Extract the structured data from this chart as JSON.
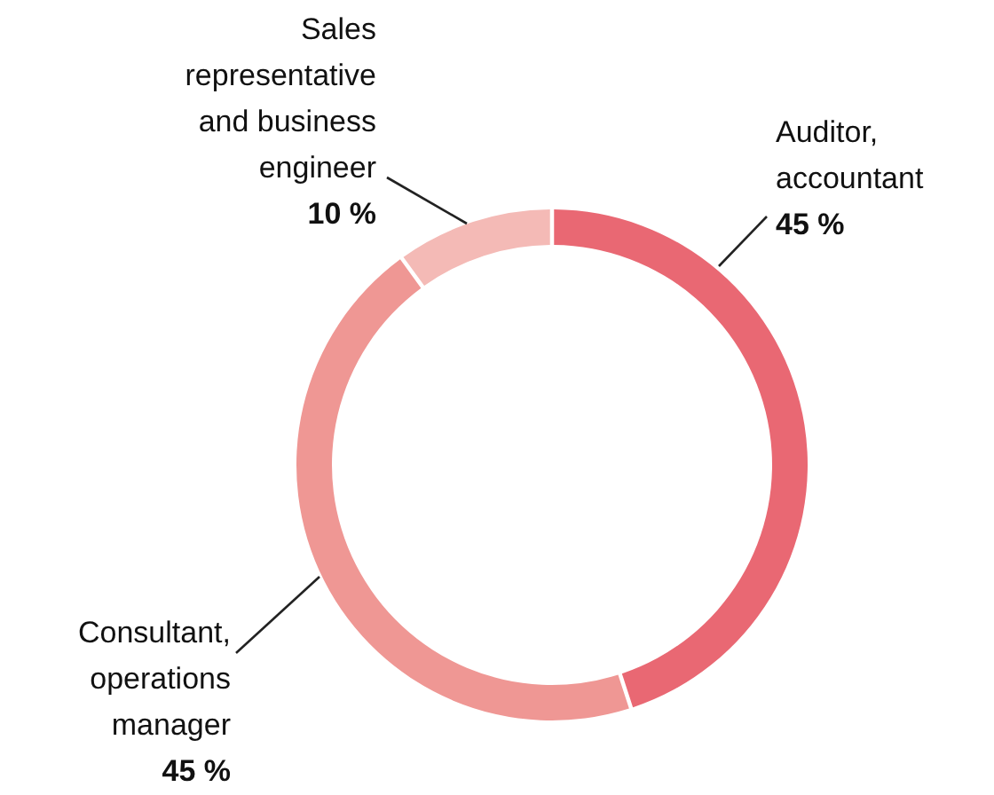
{
  "chart_data": {
    "type": "donut",
    "categories": [
      "Auditor, accountant",
      "Consultant, operations manager",
      "Sales representative and business engineer"
    ],
    "values": [
      45,
      45,
      10
    ],
    "colors": [
      "#e96873",
      "#ef9794",
      "#f4bab6"
    ],
    "value_labels": [
      "45 %",
      "45 %",
      "10 %"
    ]
  }
}
